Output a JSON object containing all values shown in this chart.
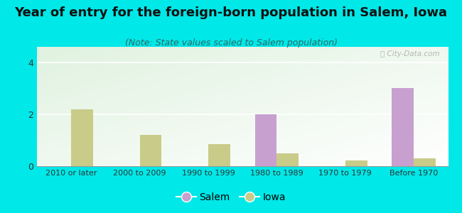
{
  "title": "Year of entry for the foreign-born population in Salem, Iowa",
  "subtitle": "(Note: State values scaled to Salem population)",
  "categories": [
    "2010 or later",
    "2000 to 2009",
    "1990 to 1999",
    "1980 to 1989",
    "1970 to 1979",
    "Before 1970"
  ],
  "salem_values": [
    0,
    0,
    0,
    2.0,
    0,
    3.0
  ],
  "iowa_values": [
    2.18,
    1.2,
    0.85,
    0.48,
    0.22,
    0.3
  ],
  "salem_color": "#c8a0d0",
  "iowa_color": "#c8cc88",
  "background_color": "#00e8e8",
  "ylim": [
    0,
    4.6
  ],
  "yticks": [
    0,
    2,
    4
  ],
  "bar_width": 0.32,
  "title_fontsize": 13,
  "subtitle_fontsize": 9,
  "legend_labels": [
    "Salem",
    "Iowa"
  ],
  "watermark": "ⓘ City-Data.com"
}
